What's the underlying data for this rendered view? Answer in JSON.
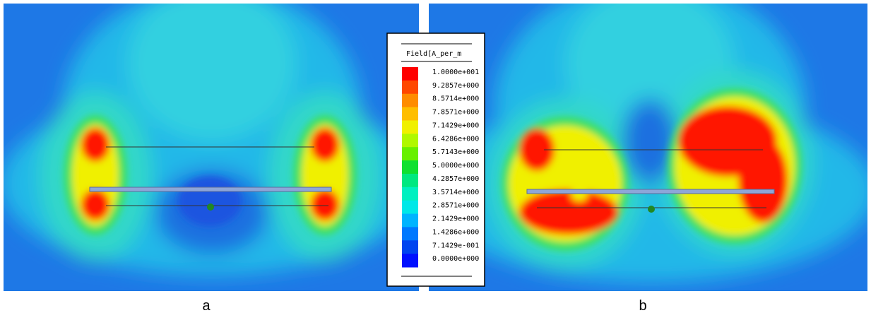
{
  "legend": {
    "title": "Field[A_per_m",
    "labels": [
      "1.0000e+001",
      "9.2857e+000",
      "8.5714e+000",
      "7.8571e+000",
      "7.1429e+000",
      "6.4286e+000",
      "5.7143e+000",
      "5.0000e+000",
      "4.2857e+000",
      "3.5714e+000",
      "2.8571e+000",
      "2.1429e+000",
      "1.4286e+000",
      "7.1429e-001",
      "0.0000e+000"
    ]
  },
  "panels": [
    {
      "label": "a"
    },
    {
      "label": "b"
    }
  ]
}
